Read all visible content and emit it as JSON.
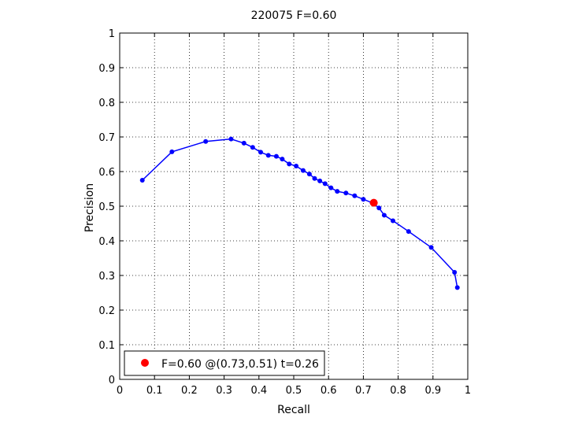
{
  "chart_data": {
    "type": "line",
    "title": "220075 F=0.60",
    "xlabel": "Recall",
    "ylabel": "Precision",
    "xlim": [
      0,
      1
    ],
    "ylim": [
      0,
      1
    ],
    "grid": true,
    "x_ticks": [
      "0",
      "0.1",
      "0.2",
      "0.3",
      "0.4",
      "0.5",
      "0.6",
      "0.7",
      "0.8",
      "0.9",
      "1"
    ],
    "y_ticks": [
      "0",
      "0.1",
      "0.2",
      "0.3",
      "0.4",
      "0.5",
      "0.6",
      "0.7",
      "0.8",
      "0.9",
      "1"
    ],
    "series": [
      {
        "color": "#0000ff",
        "points": [
          [
            0.065,
            0.575
          ],
          [
            0.15,
            0.657
          ],
          [
            0.247,
            0.687
          ],
          [
            0.32,
            0.694
          ],
          [
            0.357,
            0.682
          ],
          [
            0.382,
            0.67
          ],
          [
            0.405,
            0.656
          ],
          [
            0.427,
            0.647
          ],
          [
            0.45,
            0.644
          ],
          [
            0.467,
            0.636
          ],
          [
            0.487,
            0.622
          ],
          [
            0.507,
            0.616
          ],
          [
            0.527,
            0.603
          ],
          [
            0.545,
            0.593
          ],
          [
            0.56,
            0.58
          ],
          [
            0.575,
            0.573
          ],
          [
            0.59,
            0.565
          ],
          [
            0.607,
            0.553
          ],
          [
            0.625,
            0.543
          ],
          [
            0.65,
            0.538
          ],
          [
            0.675,
            0.53
          ],
          [
            0.7,
            0.52
          ],
          [
            0.725,
            0.51
          ],
          [
            0.745,
            0.495
          ],
          [
            0.76,
            0.474
          ],
          [
            0.785,
            0.458
          ],
          [
            0.83,
            0.427
          ],
          [
            0.895,
            0.381
          ],
          [
            0.962,
            0.309
          ],
          [
            0.97,
            0.265
          ]
        ]
      }
    ],
    "best_point": {
      "x": 0.73,
      "y": 0.51,
      "color": "#ff0000"
    },
    "legend": {
      "position": "bottom-left",
      "text": "F=0.60 @(0.73,0.51) t=0.26"
    }
  }
}
